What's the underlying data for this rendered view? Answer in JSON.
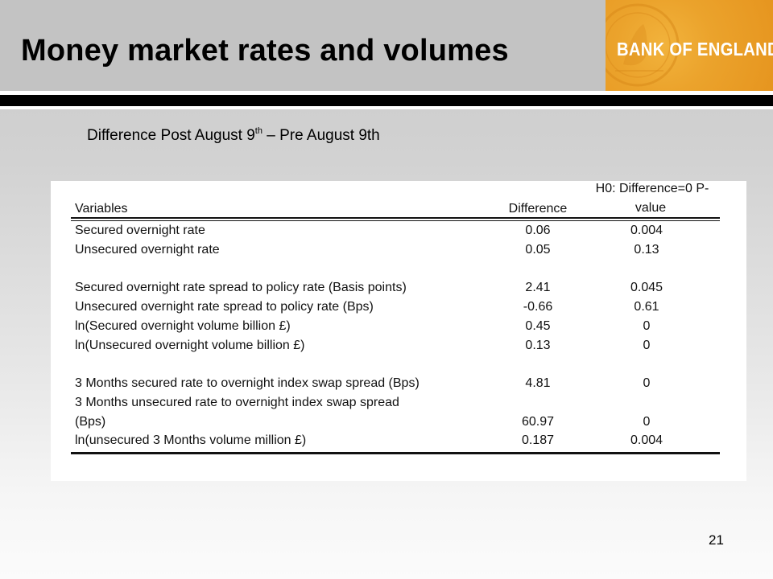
{
  "slide": {
    "title": "Money market rates and volumes",
    "subtitle_main": "Difference Post August 9",
    "subtitle_sup": "th",
    "subtitle_rest": " – Pre August 9th",
    "page_number": "21"
  },
  "logo": {
    "text": "BANK OF ENGLAND",
    "color": "#e99a22"
  },
  "table": {
    "headers": {
      "variables": "Variables",
      "difference": "Difference",
      "pvalue_line1": "H0: Difference=0 P-",
      "pvalue_line2": "value"
    },
    "rows": [
      {
        "label": "Secured overnight rate",
        "difference": "0.06",
        "pvalue": "0.004"
      },
      {
        "label": "Unsecured overnight rate",
        "difference": "0.05",
        "pvalue": "0.13"
      },
      {
        "label": "Secured overnight rate spread to policy rate (Basis points)",
        "difference": "2.41",
        "pvalue": "0.045"
      },
      {
        "label": "Unsecured overnight rate spread to policy rate (Bps)",
        "difference": "-0.66",
        "pvalue": "0.61"
      },
      {
        "label": "ln(Secured overnight volume billion £)",
        "difference": "0.45",
        "pvalue": "0"
      },
      {
        "label": "ln(Unsecured overnight volume billion £)",
        "difference": "0.13",
        "pvalue": "0"
      },
      {
        "label": "3 Months secured rate to overnight index swap spread (Bps)",
        "difference": "4.81",
        "pvalue": "0"
      },
      {
        "label": "3 Months unsecured rate to overnight index swap spread",
        "difference": "",
        "pvalue": ""
      },
      {
        "label": "(Bps)",
        "difference": "60.97",
        "pvalue": "0"
      },
      {
        "label": "ln(unsecured 3 Months volume million £)",
        "difference": "0.187",
        "pvalue": "0.004"
      }
    ]
  }
}
